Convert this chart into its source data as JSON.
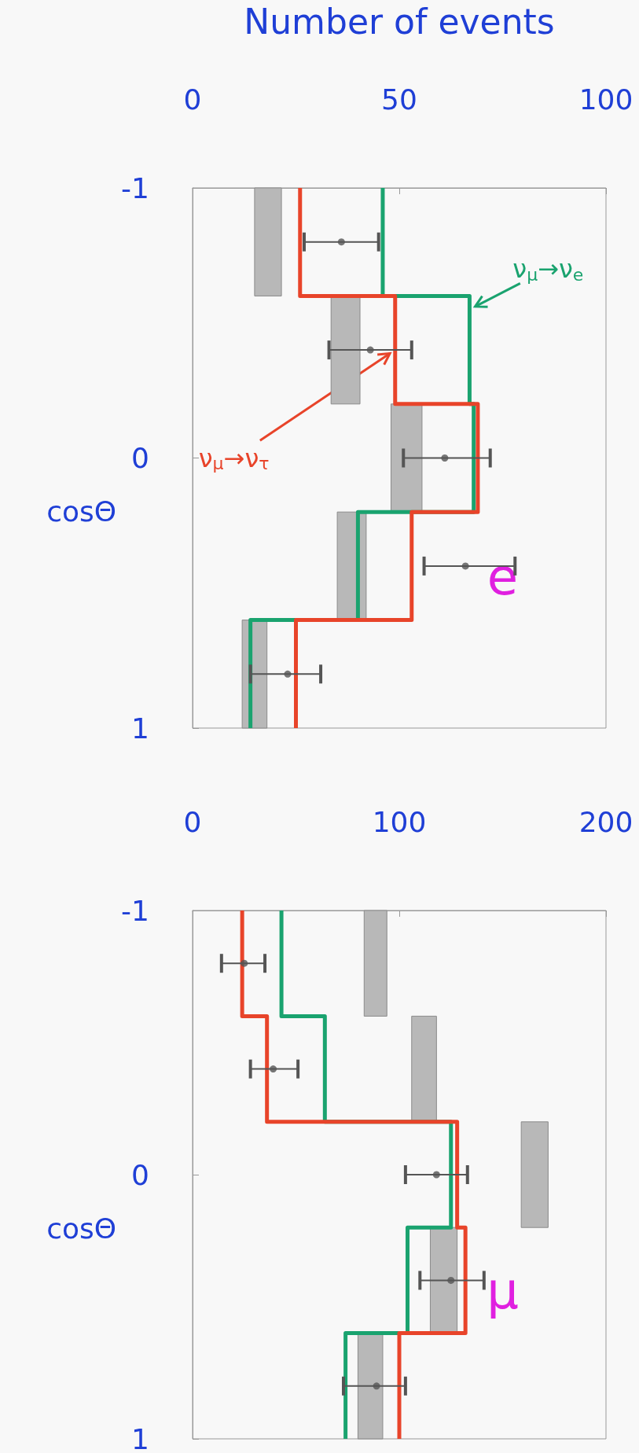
{
  "chart_data": [
    {
      "type": "line",
      "orientation": "horizontal",
      "title": "e",
      "ylabel": "cosΘ",
      "xlabel": "Number of events",
      "ylim": [
        1,
        -1
      ],
      "yticks": [
        -1,
        0,
        1
      ],
      "xlim": [
        0,
        100
      ],
      "xticks": [
        0,
        50,
        100
      ],
      "legend": false,
      "series": [
        {
          "name": "ν$_{μ}$→ν$_{e}$",
          "type": "line",
          "color": "#1aa36f",
          "x": [
            -1,
            -0.6,
            -0.6,
            -0.2,
            -0.2,
            0.2,
            0.2,
            0.6,
            0.6,
            1
          ],
          "values": [
            46,
            46,
            67,
            67,
            68,
            68,
            40,
            40,
            14,
            14
          ]
        },
        {
          "name": "ν$_{μ}$→ν$_{τ}$",
          "type": "line",
          "color": "#e8442a",
          "x": [
            -1,
            -0.6,
            -0.6,
            -0.2,
            -0.2,
            0.2,
            0.2,
            0.6,
            0.6,
            1
          ],
          "values": [
            26,
            26,
            49,
            49,
            69,
            69,
            53,
            53,
            25,
            25
          ]
        },
        {
          "type": "bar",
          "color": "#b8b8b8",
          "x": [
            -0.8,
            -0.4,
            0,
            0.4,
            0.8
          ],
          "base": [
            15,
            33.5,
            48,
            35,
            12
          ],
          "values": [
            6.5,
            7,
            7.5,
            7,
            6
          ]
        },
        {
          "type": "scatter",
          "color": "#555555",
          "x": [
            -0.8,
            -0.4,
            0,
            0.4,
            0.8
          ],
          "values": [
            36,
            43,
            61,
            66,
            23
          ],
          "errors": [
            [
              27,
              45
            ],
            [
              33,
              53
            ],
            [
              51,
              72
            ],
            [
              56,
              78
            ],
            [
              14,
              31
            ]
          ]
        }
      ]
    },
    {
      "type": "line",
      "orientation": "horizontal",
      "title": "μ",
      "ylabel": "cosΘ",
      "ylim": [
        1,
        -1
      ],
      "yticks": [
        -1,
        0,
        1
      ],
      "xlim": [
        0,
        200
      ],
      "xticks": [
        0,
        100,
        200
      ],
      "legend": false,
      "series": [
        {
          "type": "line",
          "color": "#1aa36f",
          "x": [
            -1,
            -0.6,
            -0.6,
            -0.2,
            -0.2,
            0.2,
            0.2,
            0.6,
            0.6,
            1
          ],
          "values": [
            43,
            43,
            64,
            64,
            125,
            125,
            104,
            104,
            74,
            74
          ]
        },
        {
          "type": "line",
          "color": "#e8442a",
          "x": [
            -1,
            -0.6,
            -0.6,
            -0.2,
            -0.2,
            0.2,
            0.2,
            0.6,
            0.6,
            1
          ],
          "values": [
            24,
            24,
            36,
            36,
            128,
            128,
            132,
            132,
            100,
            100
          ]
        },
        {
          "type": "bar",
          "color": "#b8b8b8",
          "x": [
            -0.8,
            -0.4,
            0,
            0.4,
            0.8
          ],
          "base": [
            83,
            106,
            159,
            115,
            80
          ],
          "values": [
            11,
            12,
            13,
            13,
            12
          ]
        },
        {
          "type": "scatter",
          "color": "#555555",
          "x": [
            -0.8,
            -0.4,
            0,
            0.4,
            0.8
          ],
          "values": [
            25,
            39,
            118,
            125,
            89
          ],
          "errors": [
            [
              14,
              35
            ],
            [
              28,
              51
            ],
            [
              103,
              133
            ],
            [
              110,
              141
            ],
            [
              73,
              103
            ]
          ]
        }
      ]
    }
  ]
}
